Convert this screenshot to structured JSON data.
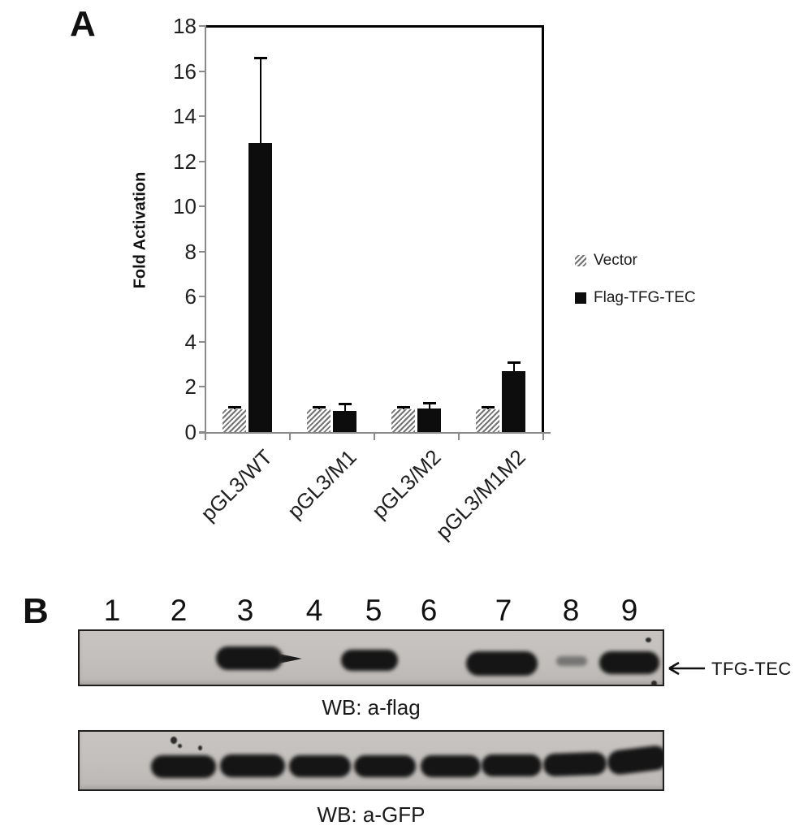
{
  "figure": {
    "panel_a_label": "A",
    "panel_b_label": "B"
  },
  "chart_data": {
    "type": "bar",
    "title": "",
    "xlabel": "",
    "ylabel": "Fold Activation",
    "ylim": [
      0,
      18
    ],
    "ytick_step": 2,
    "grid": false,
    "legend_position": "right-outside",
    "categories": [
      "pGL3/WT",
      "pGL3/M1",
      "pGL3/M2",
      "pGL3/M1M2"
    ],
    "series": [
      {
        "name": "Vector",
        "style": "hatched",
        "values": [
          1.0,
          1.0,
          1.0,
          1.0
        ],
        "errors_plus": [
          0.1,
          0.1,
          0.1,
          0.1
        ]
      },
      {
        "name": "Flag-TFG-TEC",
        "style": "solid-black",
        "values": [
          12.8,
          0.95,
          1.05,
          2.7
        ],
        "errors_plus": [
          3.8,
          0.3,
          0.25,
          0.4
        ]
      }
    ]
  },
  "blots": {
    "lane_numbers": [
      "1",
      "2",
      "3",
      "4",
      "5",
      "6",
      "7",
      "8",
      "9"
    ],
    "blot1": {
      "caption": "WB: a-flag",
      "arrow_label": "TFG-TEC",
      "bands": [
        {
          "lane": 3,
          "intensity": "strong"
        },
        {
          "lane": 5,
          "intensity": "strong"
        },
        {
          "lane": 7,
          "intensity": "strong"
        },
        {
          "lane": 8,
          "intensity": "faint"
        },
        {
          "lane": 9,
          "intensity": "strong"
        }
      ]
    },
    "blot2": {
      "caption": "WB: a-GFP",
      "bands": [
        {
          "lane": 2,
          "intensity": "strong"
        },
        {
          "lane": 3,
          "intensity": "strong"
        },
        {
          "lane": 4,
          "intensity": "strong"
        },
        {
          "lane": 5,
          "intensity": "strong"
        },
        {
          "lane": 6,
          "intensity": "strong"
        },
        {
          "lane": 7,
          "intensity": "strong"
        },
        {
          "lane": 8,
          "intensity": "strong"
        },
        {
          "lane": 9,
          "intensity": "strong"
        }
      ]
    }
  },
  "colors": {
    "bar_black": "#0d0d0d",
    "hatch_stripe": "#737373",
    "axis_gray": "#8a8a8a",
    "error_bar": "#000000",
    "blot_background": "#c2bfbc",
    "blot_border": "#1f1f1f",
    "band_dark": "#151515",
    "text": "#1a1a1a",
    "page_background": "#ffffff"
  }
}
